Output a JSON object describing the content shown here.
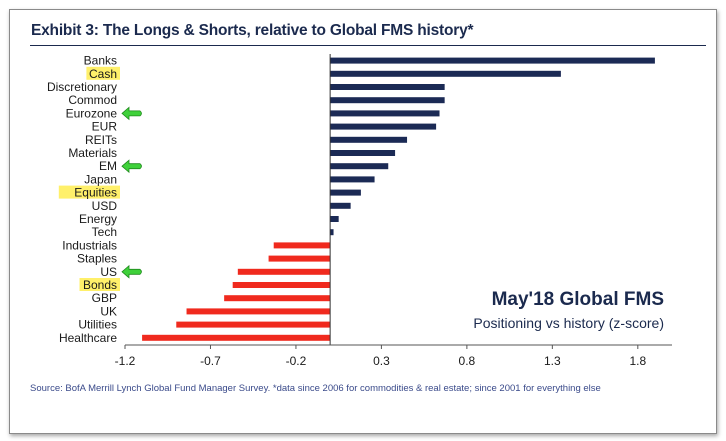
{
  "title": "Exhibit 3: The Longs & Shorts, relative to Global FMS history*",
  "source": "Source:  BofA Merrill Lynch Global Fund Manager Survey. *data since 2006 for commodities & real estate; since 2001  for everything else",
  "annotation": {
    "title": "May'18 Global FMS",
    "subtitle": "Positioning vs history (z-score)"
  },
  "colors": {
    "positive": "#1b2a55",
    "negative": "#f02a1e",
    "highlight": "#fff06a",
    "arrow": "#3fd13a"
  },
  "chart_data": {
    "type": "bar",
    "orientation": "horizontal",
    "categories": [
      "Banks",
      "Cash",
      "Discretionary",
      "Commod",
      "Eurozone",
      "EUR",
      "REITs",
      "Materials",
      "EM",
      "Japan",
      "Equities",
      "USD",
      "Energy",
      "Tech",
      "Industrials",
      "Staples",
      "US",
      "Bonds",
      "GBP",
      "UK",
      "Utilities",
      "Healthcare"
    ],
    "values": [
      1.9,
      1.35,
      0.67,
      0.67,
      0.64,
      0.62,
      0.45,
      0.38,
      0.34,
      0.26,
      0.18,
      0.12,
      0.05,
      0.02,
      -0.33,
      -0.36,
      -0.54,
      -0.57,
      -0.62,
      -0.84,
      -0.9,
      -1.1
    ],
    "highlighted": [
      "Cash",
      "Equities",
      "Bonds"
    ],
    "arrows": [
      "Eurozone",
      "EM",
      "US"
    ],
    "xticks": [
      "-1.2",
      "-0.7",
      "-0.2",
      "0.3",
      "0.8",
      "1.3",
      "1.8"
    ],
    "xlim": [
      -1.2,
      2.0
    ],
    "xlabel": "",
    "ylabel": "",
    "grid": false,
    "legend": "none"
  }
}
